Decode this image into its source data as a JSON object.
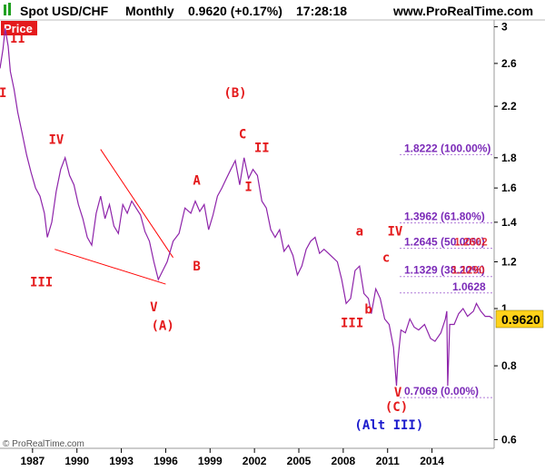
{
  "header": {
    "symbol": "Spot USD/CHF",
    "period": "Monthly",
    "quote": "0.9620 (+0.17%)",
    "time": "17:28:18",
    "site": "www.ProRealTime.com"
  },
  "badge": "Price",
  "copyright": "© ProRealTime.com",
  "colors": {
    "price_line": "#8e24aa",
    "wave_labels": "#e41a1c",
    "fib_text": "#7b2ab8",
    "trendline": "#ff0000",
    "alt_label": "#1a1acd",
    "last_price_bg": "#ffd21a",
    "badge_bg": "#e41a1c"
  },
  "last_price_label": "0.9620",
  "wave_labels": [
    {
      "text": "I",
      "color": "#e41a1c"
    },
    {
      "text": "II",
      "color": "#e41a1c"
    },
    {
      "text": "III",
      "color": "#e41a1c"
    },
    {
      "text": "IV",
      "color": "#e41a1c"
    },
    {
      "text": "V",
      "color": "#e41a1c"
    },
    {
      "text": "(A)",
      "color": "#e41a1c"
    },
    {
      "text": "A",
      "color": "#e41a1c"
    },
    {
      "text": "B",
      "color": "#e41a1c"
    },
    {
      "text": "C",
      "color": "#e41a1c"
    },
    {
      "text": "(B)",
      "color": "#e41a1c"
    },
    {
      "text": "I",
      "color": "#e41a1c"
    },
    {
      "text": "II",
      "color": "#e41a1c"
    },
    {
      "text": "III",
      "color": "#e41a1c"
    },
    {
      "text": "a",
      "color": "#e41a1c"
    },
    {
      "text": "b",
      "color": "#e41a1c"
    },
    {
      "text": "c",
      "color": "#e41a1c"
    },
    {
      "text": "IV",
      "color": "#e41a1c"
    },
    {
      "text": "V",
      "color": "#e41a1c"
    },
    {
      "text": "(C)",
      "color": "#e41a1c"
    },
    {
      "text": "(Alt III)",
      "color": "#1a1acd"
    }
  ],
  "chart_data": {
    "type": "line",
    "title": "Spot USD/CHF Monthly",
    "y_scale": "log",
    "ylim": [
      0.58,
      3.08
    ],
    "xlim": [
      1984.8,
      2018.2
    ],
    "x_ticks": [
      1987,
      1990,
      1993,
      1996,
      1999,
      2002,
      2005,
      2008,
      2011,
      2014
    ],
    "y_ticks": [
      0.6,
      0.8,
      1,
      1.2,
      1.4,
      1.6,
      1.8,
      2.2,
      2.6,
      3
    ],
    "series": [
      {
        "values": [
          [
            1984.8,
            2.55
          ],
          [
            1985.0,
            2.75
          ],
          [
            1985.15,
            2.98
          ],
          [
            1985.35,
            2.78
          ],
          [
            1985.5,
            2.52
          ],
          [
            1985.75,
            2.35
          ],
          [
            1986.0,
            2.15
          ],
          [
            1986.3,
            1.98
          ],
          [
            1986.6,
            1.82
          ],
          [
            1986.9,
            1.7
          ],
          [
            1987.2,
            1.6
          ],
          [
            1987.5,
            1.55
          ],
          [
            1987.8,
            1.45
          ],
          [
            1988.0,
            1.32
          ],
          [
            1988.3,
            1.4
          ],
          [
            1988.6,
            1.58
          ],
          [
            1988.9,
            1.72
          ],
          [
            1989.2,
            1.8
          ],
          [
            1989.5,
            1.68
          ],
          [
            1989.8,
            1.62
          ],
          [
            1990.1,
            1.5
          ],
          [
            1990.4,
            1.42
          ],
          [
            1990.7,
            1.32
          ],
          [
            1991.0,
            1.28
          ],
          [
            1991.3,
            1.45
          ],
          [
            1991.6,
            1.55
          ],
          [
            1991.9,
            1.42
          ],
          [
            1992.2,
            1.5
          ],
          [
            1992.5,
            1.38
          ],
          [
            1992.8,
            1.34
          ],
          [
            1993.1,
            1.5
          ],
          [
            1993.4,
            1.45
          ],
          [
            1993.7,
            1.52
          ],
          [
            1994.0,
            1.48
          ],
          [
            1994.3,
            1.44
          ],
          [
            1994.6,
            1.35
          ],
          [
            1994.9,
            1.3
          ],
          [
            1995.2,
            1.2
          ],
          [
            1995.5,
            1.12
          ],
          [
            1995.8,
            1.16
          ],
          [
            1996.1,
            1.2
          ],
          [
            1996.5,
            1.3
          ],
          [
            1996.9,
            1.34
          ],
          [
            1997.3,
            1.48
          ],
          [
            1997.7,
            1.45
          ],
          [
            1998.0,
            1.52
          ],
          [
            1998.3,
            1.46
          ],
          [
            1998.6,
            1.5
          ],
          [
            1998.9,
            1.36
          ],
          [
            1999.2,
            1.44
          ],
          [
            1999.5,
            1.55
          ],
          [
            1999.8,
            1.6
          ],
          [
            2000.1,
            1.66
          ],
          [
            2000.4,
            1.72
          ],
          [
            2000.7,
            1.78
          ],
          [
            2001.0,
            1.62
          ],
          [
            2001.3,
            1.8
          ],
          [
            2001.6,
            1.66
          ],
          [
            2001.9,
            1.72
          ],
          [
            2002.2,
            1.68
          ],
          [
            2002.5,
            1.52
          ],
          [
            2002.8,
            1.48
          ],
          [
            2003.1,
            1.36
          ],
          [
            2003.4,
            1.32
          ],
          [
            2003.7,
            1.36
          ],
          [
            2004.0,
            1.25
          ],
          [
            2004.3,
            1.28
          ],
          [
            2004.6,
            1.23
          ],
          [
            2004.9,
            1.14
          ],
          [
            2005.2,
            1.18
          ],
          [
            2005.5,
            1.26
          ],
          [
            2005.8,
            1.3
          ],
          [
            2006.1,
            1.32
          ],
          [
            2006.4,
            1.24
          ],
          [
            2006.7,
            1.26
          ],
          [
            2007.0,
            1.24
          ],
          [
            2007.3,
            1.22
          ],
          [
            2007.6,
            1.2
          ],
          [
            2007.9,
            1.12
          ],
          [
            2008.2,
            1.02
          ],
          [
            2008.5,
            1.04
          ],
          [
            2008.8,
            1.16
          ],
          [
            2009.1,
            1.18
          ],
          [
            2009.4,
            1.06
          ],
          [
            2009.7,
            1.04
          ],
          [
            2009.9,
            0.98
          ],
          [
            2010.2,
            1.08
          ],
          [
            2010.5,
            1.04
          ],
          [
            2010.8,
            0.96
          ],
          [
            2011.1,
            0.94
          ],
          [
            2011.4,
            0.86
          ],
          [
            2011.6,
            0.74
          ],
          [
            2011.7,
            0.82
          ],
          [
            2011.9,
            0.92
          ],
          [
            2012.2,
            0.91
          ],
          [
            2012.5,
            0.96
          ],
          [
            2012.8,
            0.93
          ],
          [
            2013.1,
            0.92
          ],
          [
            2013.5,
            0.94
          ],
          [
            2013.9,
            0.89
          ],
          [
            2014.2,
            0.88
          ],
          [
            2014.6,
            0.91
          ],
          [
            2014.9,
            0.96
          ],
          [
            2015.0,
            0.99
          ],
          [
            2015.06,
            0.74
          ],
          [
            2015.2,
            0.94
          ],
          [
            2015.5,
            0.94
          ],
          [
            2015.8,
            0.98
          ],
          [
            2016.1,
            1.0
          ],
          [
            2016.4,
            0.97
          ],
          [
            2016.8,
            0.99
          ],
          [
            2017.0,
            1.02
          ],
          [
            2017.3,
            0.99
          ],
          [
            2017.6,
            0.97
          ],
          [
            2017.9,
            0.97
          ],
          [
            2018.1,
            0.962
          ]
        ]
      }
    ],
    "fib_levels": [
      {
        "value": 1.8222,
        "label": "1.8222 (100.00%)"
      },
      {
        "value": 1.3962,
        "label": "1.3962 (61.80%)"
      },
      {
        "value": 1.2645,
        "label": "1.2645 (50.00%)"
      },
      {
        "value": 1.1329,
        "label": "1.1329 (38.20%)"
      },
      {
        "value": 1.0628,
        "label": "1.0628"
      },
      {
        "value": 0.7069,
        "label": "0.7069 (0.00%)"
      }
    ]
  }
}
